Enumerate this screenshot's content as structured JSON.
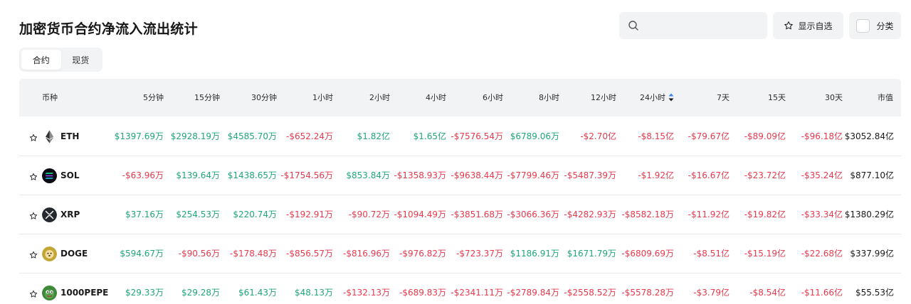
{
  "title": "加密货币合约净流入流出统计",
  "search": {
    "placeholder": ""
  },
  "buttons": {
    "favorites": "显示自选",
    "category": "分类"
  },
  "tabs": [
    {
      "label": "合约",
      "active": true
    },
    {
      "label": "现货",
      "active": false
    }
  ],
  "colors": {
    "positive": "#1fa67a",
    "negative": "#e8394d",
    "header_bg": "#f2f3f5",
    "sort_active": "#3b82f6"
  },
  "table": {
    "columns": [
      "币种",
      "5分钟",
      "15分钟",
      "30分钟",
      "1小时",
      "2小时",
      "4小时",
      "6小时",
      "8小时",
      "12小时",
      "24小时",
      "7天",
      "15天",
      "30天",
      "市值"
    ],
    "sorted_column": "24小时",
    "rows": [
      {
        "coin": "ETH",
        "icon": "ethereum-icon",
        "values": [
          "$1397.69万",
          "$2928.19万",
          "$4585.70万",
          "-$652.24万",
          "$1.82亿",
          "$1.65亿",
          "-$7576.54万",
          "$6789.06万",
          "-$2.70亿",
          "-$8.15亿",
          "-$79.67亿",
          "-$89.09亿",
          "-$96.18亿"
        ],
        "market_cap": "$3052.84亿"
      },
      {
        "coin": "SOL",
        "icon": "solana-icon",
        "values": [
          "-$63.96万",
          "$139.64万",
          "$1438.65万",
          "-$1754.56万",
          "$853.84万",
          "-$1358.93万",
          "-$9638.44万",
          "-$7799.46万",
          "-$5487.39万",
          "-$1.92亿",
          "-$16.67亿",
          "-$23.72亿",
          "-$35.24亿"
        ],
        "market_cap": "$877.10亿"
      },
      {
        "coin": "XRP",
        "icon": "xrp-icon",
        "values": [
          "$37.16万",
          "$254.53万",
          "$220.74万",
          "-$192.91万",
          "-$90.72万",
          "-$1094.49万",
          "-$3851.68万",
          "-$3066.36万",
          "-$4282.93万",
          "-$8582.18万",
          "-$11.92亿",
          "-$19.82亿",
          "-$33.34亿"
        ],
        "market_cap": "$1380.29亿"
      },
      {
        "coin": "DOGE",
        "icon": "dogecoin-icon",
        "values": [
          "$594.67万",
          "-$90.56万",
          "-$178.48万",
          "-$856.57万",
          "-$816.96万",
          "-$976.82万",
          "-$723.37万",
          "$1186.91万",
          "$1671.79万",
          "-$6809.69万",
          "-$8.51亿",
          "-$15.19亿",
          "-$22.68亿"
        ],
        "market_cap": "$337.99亿"
      },
      {
        "coin": "1000PEPE",
        "icon": "pepe-icon",
        "values": [
          "$29.33万",
          "$29.28万",
          "$61.43万",
          "$48.13万",
          "-$132.13万",
          "-$689.83万",
          "-$2341.11万",
          "-$2789.84万",
          "-$2558.52万",
          "-$5578.28万",
          "-$3.79亿",
          "-$8.54亿",
          "-$11.66亿"
        ],
        "market_cap": "$55.53亿"
      }
    ]
  }
}
